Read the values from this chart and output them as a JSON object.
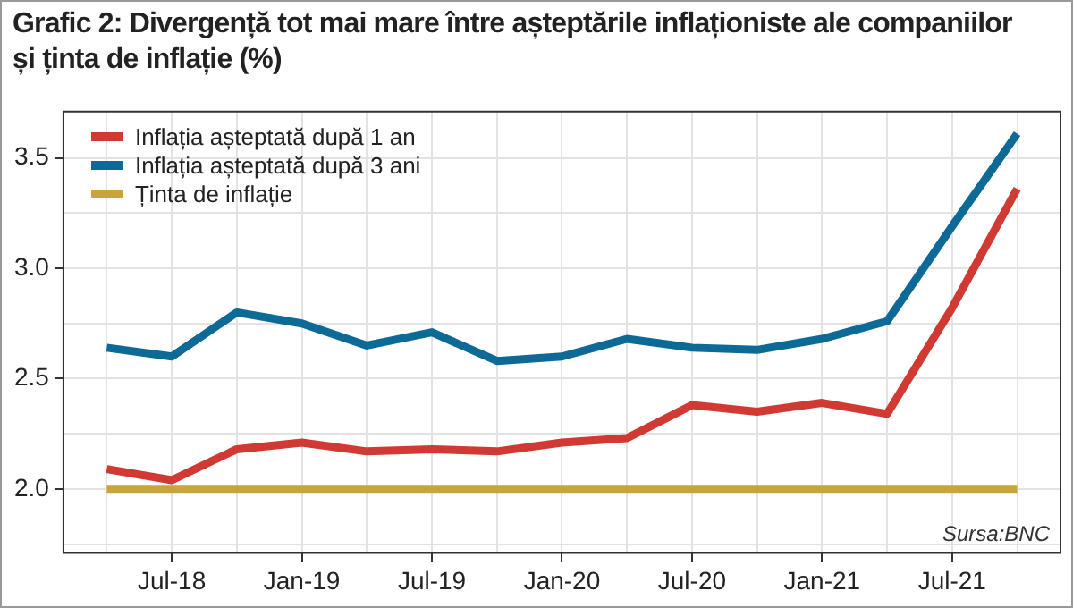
{
  "chart_data": {
    "type": "line",
    "title": "Grafic 2: Divergență tot mai mare între așteptările inflaționiste ale companiilor și ținta de inflație (%)",
    "x": [
      "2018-04",
      "2018-07",
      "2018-10",
      "2019-01",
      "2019-04",
      "2019-07",
      "2019-10",
      "2020-01",
      "2020-04",
      "2020-07",
      "2020-10",
      "2021-01",
      "2021-04",
      "2021-07",
      "2021-10"
    ],
    "series": [
      {
        "name": "Inflația așteptată după 1 an",
        "color": "#d03a32",
        "values": [
          2.09,
          2.04,
          2.18,
          2.21,
          2.17,
          2.18,
          2.17,
          2.21,
          2.23,
          2.38,
          2.35,
          2.39,
          2.34,
          2.82,
          3.36
        ]
      },
      {
        "name": "Inflația așteptată după 3 ani",
        "color": "#0d6a96",
        "values": [
          2.64,
          2.6,
          2.8,
          2.75,
          2.65,
          2.71,
          2.58,
          2.6,
          2.68,
          2.64,
          2.63,
          2.68,
          2.76,
          3.19,
          3.61
        ]
      },
      {
        "name": "Ținta de inflație",
        "color": "#c9a43a",
        "values": [
          2.0,
          2.0,
          2.0,
          2.0,
          2.0,
          2.0,
          2.0,
          2.0,
          2.0,
          2.0,
          2.0,
          2.0,
          2.0,
          2.0,
          2.0
        ]
      }
    ],
    "xlim": [
      "2018-02",
      "2021-12"
    ],
    "xticks": [
      {
        "value": "2018-04",
        "label": null
      },
      {
        "value": "2018-07",
        "label": "Jul-18"
      },
      {
        "value": "2018-10",
        "label": null
      },
      {
        "value": "2019-01",
        "label": "Jan-19"
      },
      {
        "value": "2019-04",
        "label": null
      },
      {
        "value": "2019-07",
        "label": "Jul-19"
      },
      {
        "value": "2019-10",
        "label": null
      },
      {
        "value": "2020-01",
        "label": "Jan-20"
      },
      {
        "value": "2020-04",
        "label": null
      },
      {
        "value": "2020-07",
        "label": "Jul-20"
      },
      {
        "value": "2020-10",
        "label": null
      },
      {
        "value": "2021-01",
        "label": "Jan-21"
      },
      {
        "value": "2021-04",
        "label": null
      },
      {
        "value": "2021-07",
        "label": "Jul-21"
      },
      {
        "value": "2021-10",
        "label": null
      }
    ],
    "ylim": [
      1.71,
      3.71
    ],
    "yticks": [
      {
        "value": 1.75,
        "label": null
      },
      {
        "value": 2.0,
        "label": "2.0"
      },
      {
        "value": 2.25,
        "label": null
      },
      {
        "value": 2.5,
        "label": "2.5"
      },
      {
        "value": 2.75,
        "label": null
      },
      {
        "value": 3.0,
        "label": "3.0"
      },
      {
        "value": 3.25,
        "label": null
      },
      {
        "value": 3.5,
        "label": "3.5"
      }
    ],
    "grid": true,
    "legend": "top left",
    "marker": "none",
    "line_style": "solid",
    "annotations": [
      "Sursa:BNC"
    ]
  }
}
